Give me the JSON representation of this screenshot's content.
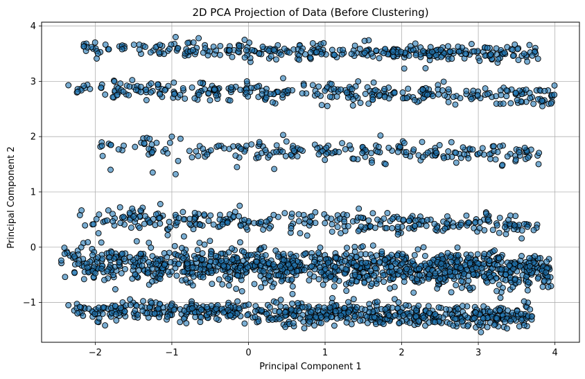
{
  "chart_data": {
    "type": "scatter",
    "title": "2D PCA Projection of Data (Before Clustering)",
    "xlabel": "Principal Component 1",
    "ylabel": "Principal Component 2",
    "xlim": [
      -2.7,
      4.32
    ],
    "ylim": [
      -1.72,
      4.07
    ],
    "xticks": [
      -2,
      -1,
      0,
      1,
      2,
      3,
      4
    ],
    "yticks": [
      -1,
      0,
      1,
      2,
      3,
      4
    ],
    "grid": true,
    "legend": "none",
    "marker": {
      "fill": "#1f77b4",
      "fill_opacity": 0.6,
      "edge": "#000000"
    },
    "bands": [
      {
        "y": 3.55,
        "x_min": -2.2,
        "x_max": 3.8,
        "n": 320,
        "spread": 0.07
      },
      {
        "y": 2.8,
        "x_min": -2.35,
        "x_max": 4.0,
        "n": 320,
        "spread": 0.09
      },
      {
        "y": 1.75,
        "x_min": -2.0,
        "x_max": 3.8,
        "n": 220,
        "spread": 0.09
      },
      {
        "y": 0.45,
        "x_min": -2.2,
        "x_max": 3.85,
        "n": 300,
        "spread": 0.09
      },
      {
        "y": -0.35,
        "x_min": -2.45,
        "x_max": 3.95,
        "n": 1100,
        "spread": 0.16
      },
      {
        "y": -1.2,
        "x_min": -2.35,
        "x_max": 3.7,
        "n": 650,
        "spread": 0.1
      }
    ],
    "points": [
      [
        -2.15,
        3.63
      ],
      [
        -2.05,
        3.62
      ],
      [
        -1.65,
        3.58
      ],
      [
        -0.95,
        3.8
      ],
      [
        -0.65,
        3.78
      ],
      [
        3.95,
        2.6
      ],
      [
        -2.35,
        2.93
      ],
      [
        -2.15,
        2.92
      ],
      [
        -0.05,
        3.75
      ],
      [
        2.7,
        2.58
      ],
      [
        -1.0,
        2.0
      ],
      [
        -1.8,
        1.4
      ],
      [
        -1.25,
        1.35
      ],
      [
        -0.95,
        1.32
      ],
      [
        -0.15,
        1.45
      ],
      [
        3.65,
        1.62
      ],
      [
        -1.15,
        0.78
      ],
      [
        -1.55,
        0.62
      ],
      [
        -2.2,
        0.58
      ],
      [
        -0.7,
        0.62
      ],
      [
        -2.4,
        -0.12
      ],
      [
        -2.1,
        -0.37
      ],
      [
        -1.3,
        0.08
      ],
      [
        -2.35,
        -1.05
      ],
      [
        -2.2,
        -1.08
      ],
      [
        -0.05,
        -1.38
      ],
      [
        3.7,
        -1.25
      ]
    ]
  }
}
